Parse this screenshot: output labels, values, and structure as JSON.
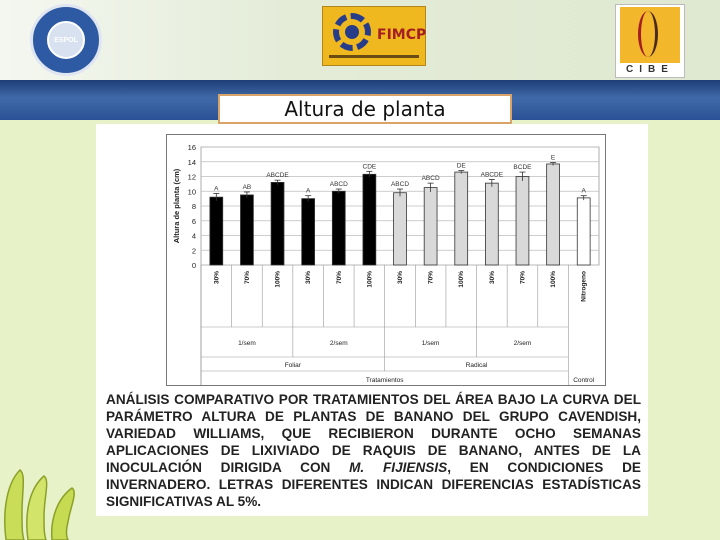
{
  "header": {
    "logos": {
      "espol": {
        "text": "ESPOL",
        "icon": "espol-seal-logo"
      },
      "fimcp": {
        "text": "FIMCP",
        "icon": "fimcp-gear-logo"
      },
      "cibe": {
        "text": "CIBE",
        "icon": "cibe-helix-logo"
      }
    },
    "band_color": "#2a5196"
  },
  "slide": {
    "title": "Altura de planta"
  },
  "chart_data": {
    "type": "bar",
    "ylabel": "Altura de planta (cm)",
    "xlabel": "Tratamientos",
    "ylim": [
      0,
      16
    ],
    "yticks": [
      0,
      2,
      4,
      6,
      8,
      10,
      12,
      14,
      16
    ],
    "grid": true,
    "categories": [
      "30%",
      "70%",
      "100%",
      "30%",
      "70%",
      "100%",
      "30%",
      "70%",
      "100%",
      "30%",
      "70%",
      "100%",
      "Nitrogeno"
    ],
    "values": [
      9.2,
      9.5,
      11.2,
      9.0,
      10.0,
      12.3,
      9.8,
      10.5,
      12.6,
      11.1,
      12.0,
      13.7,
      9.1
    ],
    "errors": [
      0.5,
      0.4,
      0.3,
      0.4,
      0.3,
      0.4,
      0.5,
      0.6,
      0.2,
      0.5,
      0.6,
      0.2,
      0.3
    ],
    "significance_labels": [
      "A",
      "AB",
      "ABCDE",
      "A",
      "ABCD",
      "CDE",
      "ABCD",
      "ABCD",
      "DE",
      "ABCDE",
      "BCDE",
      "E",
      "A"
    ],
    "bar_colors": [
      "#000000",
      "#000000",
      "#000000",
      "#000000",
      "#000000",
      "#000000",
      "#d9d9d9",
      "#d9d9d9",
      "#d9d9d9",
      "#d9d9d9",
      "#d9d9d9",
      "#d9d9d9",
      "#ffffff"
    ],
    "frequency_groups": [
      {
        "label": "1/sem",
        "start": 0,
        "end": 2
      },
      {
        "label": "2/sem",
        "start": 3,
        "end": 5
      },
      {
        "label": "1/sem",
        "start": 6,
        "end": 8
      },
      {
        "label": "2/sem",
        "start": 9,
        "end": 11
      }
    ],
    "application_groups": [
      {
        "label": "Foliar",
        "start": 0,
        "end": 5
      },
      {
        "label": "Radical",
        "start": 6,
        "end": 11
      }
    ],
    "control_label": "Control"
  },
  "caption": {
    "part1": "Análisis comparativo por tratamientos del área bajo la curva del parámetro altura de plantas de banano del grupo Cavendish, variedad Williams, que recibieron durante ocho semanas aplicaciones de lixiviado de raquis de banano, antes de la inoculación dirigida con ",
    "species": "M. fijiensis",
    "part2": ", en condiciones de invernadero. Letras diferentes indican diferencias estadísticas significativas al 5%."
  },
  "decor": {
    "bananas_icon": "bananas-icon"
  }
}
